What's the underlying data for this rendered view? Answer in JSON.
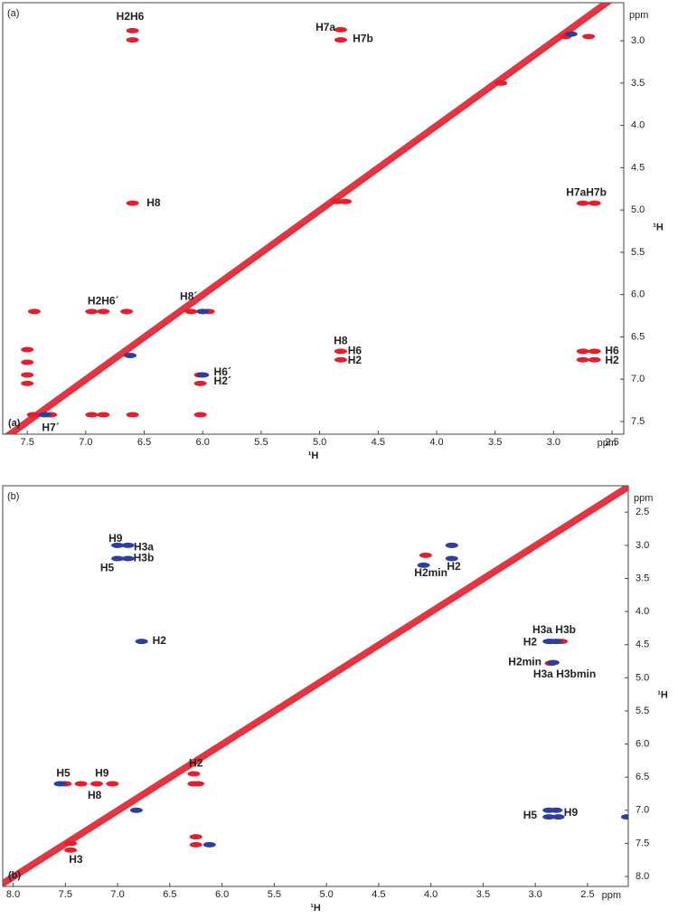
{
  "chart_data": [
    {
      "type": "scatter",
      "panel_label": "(a)",
      "x_label": "¹H",
      "x_unit": "ppm",
      "y_label": "¹H",
      "y_unit": "ppm",
      "xlim": [
        7.71,
        2.4
      ],
      "ylim": [
        2.55,
        7.65
      ],
      "xticks": [
        7.5,
        {
          "value": 7,
          "label": "7.0"
        },
        6.5,
        {
          "value": 6,
          "label": "6.0"
        },
        5.5,
        {
          "value": 5,
          "label": "5.0"
        },
        4.5,
        {
          "value": 4,
          "label": "4.0"
        },
        3.5,
        {
          "value": 3,
          "label": "3.0"
        },
        2.5
      ],
      "yticks": [
        {
          "value": 3,
          "label": "3.0"
        },
        3.5,
        {
          "value": 4,
          "label": "4.0"
        },
        4.5,
        {
          "value": 5,
          "label": "5.0"
        },
        5.5,
        {
          "value": 6,
          "label": "6.0"
        },
        6.5,
        {
          "value": 7,
          "label": "7.0"
        },
        7.5
      ],
      "diagonal_color": "#e0202e",
      "series": [
        {
          "color": "#e0202e",
          "x": [
            6.6,
            6.6,
            4.82,
            4.82,
            6.6,
            4.85,
            4.78,
            2.75,
            2.65,
            7.44,
            6.95,
            6.85,
            6.65,
            6.1,
            5.95,
            4.82,
            4.82,
            2.75,
            2.65,
            2.75,
            2.65,
            7.5,
            7.5,
            7.5,
            7.5,
            6.02,
            6.02,
            7.45,
            7.3,
            6.95,
            6.85,
            6.6,
            6.02,
            3.45,
            2.9,
            2.7
          ],
          "values": [
            2.88,
            2.99,
            2.87,
            2.99,
            4.92,
            4.9,
            4.9,
            4.92,
            4.92,
            6.2,
            6.2,
            6.2,
            6.2,
            6.2,
            6.2,
            6.67,
            6.77,
            6.67,
            6.67,
            6.77,
            6.77,
            6.65,
            6.8,
            6.95,
            7.05,
            6.95,
            7.05,
            7.42,
            7.42,
            7.42,
            7.42,
            7.42,
            7.42,
            3.5,
            2.95,
            2.95
          ]
        },
        {
          "color": "#2b3f9e",
          "x": [
            2.85,
            7.35,
            6.0,
            6.62,
            6.0
          ],
          "values": [
            2.92,
            7.42,
            6.2,
            6.72,
            6.95
          ]
        }
      ],
      "annotations": [
        {
          "text": "H2H6",
          "x": 6.62,
          "y": 2.72,
          "color": "#111111"
        },
        {
          "text": "H7a",
          "x": 4.95,
          "y": 2.85,
          "color": "#111111"
        },
        {
          "text": "H7b",
          "x": 4.63,
          "y": 2.98,
          "color": "#111111"
        },
        {
          "text": "H8",
          "x": 6.42,
          "y": 4.92,
          "color": "#111111"
        },
        {
          "text": "H7aH7b",
          "x": 2.72,
          "y": 4.8,
          "color": "#111111"
        },
        {
          "text": "H2H6´",
          "x": 6.85,
          "y": 6.08,
          "color": "#111111"
        },
        {
          "text": "H8´",
          "x": 6.12,
          "y": 6.03,
          "color": "#111111"
        },
        {
          "text": "H8",
          "x": 4.82,
          "y": 6.55,
          "color": "#111111"
        },
        {
          "text": "H6",
          "x": 4.7,
          "y": 6.67,
          "color": "#111111"
        },
        {
          "text": "H2",
          "x": 4.7,
          "y": 6.78,
          "color": "#111111"
        },
        {
          "text": "H6",
          "x": 2.5,
          "y": 6.67,
          "color": "#111111"
        },
        {
          "text": "H2",
          "x": 2.5,
          "y": 6.78,
          "color": "#111111"
        },
        {
          "text": "H6´",
          "x": 5.83,
          "y": 6.92,
          "color": "#111111"
        },
        {
          "text": "H2´",
          "x": 5.83,
          "y": 7.03,
          "color": "#111111"
        },
        {
          "text": "H7´",
          "x": 7.3,
          "y": 7.58,
          "color": "#111111"
        }
      ]
    },
    {
      "type": "scatter",
      "panel_label": "(b)",
      "x_label": "¹H",
      "x_unit": "ppm",
      "y_label": "¹H",
      "y_unit": "ppm",
      "xlim": [
        8.1,
        2.11
      ],
      "ylim": [
        2.1,
        8.15
      ],
      "xticks": [
        {
          "value": 8,
          "label": "8.0"
        },
        7.5,
        {
          "value": 7,
          "label": "7.0"
        },
        6.5,
        {
          "value": 6,
          "label": "6.0"
        },
        5.5,
        {
          "value": 5,
          "label": "5.0"
        },
        4.5,
        {
          "value": 4,
          "label": "4.0"
        },
        3.5,
        {
          "value": 3,
          "label": "3.0"
        },
        2.5
      ],
      "yticks": [
        2.5,
        {
          "value": 3,
          "label": "3.0"
        },
        3.5,
        {
          "value": 4,
          "label": "4.0"
        },
        4.5,
        {
          "value": 5,
          "label": "5.0"
        },
        5.5,
        {
          "value": 6,
          "label": "6.0"
        },
        6.5,
        {
          "value": 7,
          "label": "7.0"
        },
        7.5,
        {
          "value": 8,
          "label": "8.0"
        }
      ],
      "diagonal_color": "#e0202e",
      "series": [
        {
          "color": "#e0202e",
          "x": [
            7.5,
            7.35,
            7.2,
            7.05,
            6.27,
            6.27,
            6.23,
            7.45,
            7.45,
            6.25,
            6.25,
            3.8,
            4.05,
            2.85,
            2.85,
            2.75
          ],
          "values": [
            6.6,
            6.6,
            6.6,
            6.6,
            6.45,
            6.6,
            6.6,
            7.5,
            7.6,
            7.4,
            7.52,
            3.0,
            3.15,
            4.45,
            4.78,
            4.45
          ]
        },
        {
          "color": "#2b3f9e",
          "x": [
            7.0,
            6.9,
            7.0,
            6.9,
            6.77,
            4.07,
            3.8,
            3.8,
            2.87,
            2.8,
            2.83,
            2.87,
            2.87,
            2.8,
            2.78,
            2.12,
            7.55,
            6.12,
            6.82
          ],
          "values": [
            3.0,
            3.0,
            3.2,
            3.2,
            4.45,
            3.3,
            3.2,
            3.0,
            4.45,
            4.45,
            4.77,
            7.0,
            7.1,
            7.0,
            7.1,
            7.1,
            6.6,
            7.52,
            7.0
          ]
        }
      ],
      "annotations": [
        {
          "text": "H9",
          "x": 7.02,
          "y": 2.9,
          "color": "#2b3f9e"
        },
        {
          "text": "H3a",
          "x": 6.75,
          "y": 3.03,
          "color": "#2b3f9e"
        },
        {
          "text": "H3b",
          "x": 6.75,
          "y": 3.2,
          "color": "#2b3f9e"
        },
        {
          "text": "H5",
          "x": 7.1,
          "y": 3.35,
          "color": "#2b3f9e"
        },
        {
          "text": "H2min",
          "x": 4.0,
          "y": 3.42,
          "color": "#2b3f9e"
        },
        {
          "text": "H2",
          "x": 3.78,
          "y": 3.33,
          "color": "#2b3f9e"
        },
        {
          "text": "H2",
          "x": 6.6,
          "y": 4.45,
          "color": "#2b3f9e"
        },
        {
          "text": "H3a H3b",
          "x": 2.82,
          "y": 4.28,
          "color": "#2b3f9e"
        },
        {
          "text": "H2",
          "x": 3.05,
          "y": 4.47,
          "color": "#2b3f9e"
        },
        {
          "text": "H2min",
          "x": 3.1,
          "y": 4.77,
          "color": "#2b3f9e"
        },
        {
          "text": "H3a H3bmin",
          "x": 2.72,
          "y": 4.95,
          "color": "#2b3f9e"
        },
        {
          "text": "H5",
          "x": 3.05,
          "y": 7.08,
          "color": "#2b3f9e"
        },
        {
          "text": "H9",
          "x": 2.66,
          "y": 7.04,
          "color": "#2b3f9e"
        },
        {
          "text": "H5",
          "x": 7.52,
          "y": 6.45,
          "color": "#d4202a"
        },
        {
          "text": "H9",
          "x": 7.15,
          "y": 6.45,
          "color": "#d4202a"
        },
        {
          "text": "H8",
          "x": 7.22,
          "y": 6.78,
          "color": "#d4202a"
        },
        {
          "text": "H2",
          "x": 6.25,
          "y": 6.3,
          "color": "#d4202a"
        },
        {
          "text": "H3",
          "x": 7.4,
          "y": 7.75,
          "color": "#d4202a"
        }
      ]
    }
  ]
}
